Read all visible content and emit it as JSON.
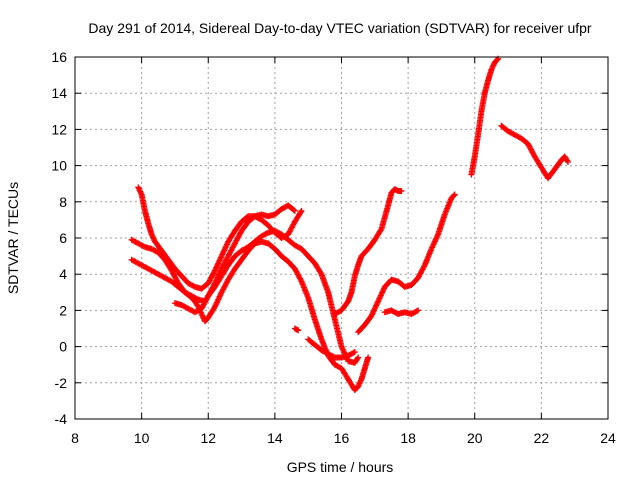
{
  "chart_data": {
    "type": "scatter",
    "title": "Day 291 of 2014, Sidereal Day-to-day VTEC variation (SDTVAR) for receiver ufpr",
    "xlabel": "GPS time / hours",
    "ylabel": "SDTVAR / TECUs",
    "xlim": [
      8,
      24
    ],
    "ylim": [
      -4,
      16
    ],
    "xticks": [
      8,
      10,
      12,
      14,
      16,
      18,
      20,
      22,
      24
    ],
    "yticks": [
      -4,
      -2,
      0,
      2,
      4,
      6,
      8,
      10,
      12,
      14,
      16
    ],
    "grid": true,
    "marker": "+",
    "color": "#ff0000",
    "series": [
      {
        "x": [
          9.7,
          9.9,
          10.1,
          10.3,
          10.5,
          10.7,
          10.9,
          11.1,
          11.3,
          11.5,
          11.7,
          11.9,
          12.0,
          12.2,
          12.4,
          12.6,
          12.8,
          13.0,
          13.2,
          13.4,
          13.6,
          13.8,
          14.0,
          14.2,
          14.4,
          14.6,
          14.8,
          15.0,
          15.2,
          15.4,
          15.6,
          15.8,
          16.0,
          16.2,
          16.4,
          16.5
        ],
        "y": [
          5.9,
          5.7,
          5.5,
          5.4,
          5.2,
          4.8,
          4.2,
          3.5,
          3.0,
          2.8,
          2.6,
          2.5,
          2.8,
          3.3,
          3.9,
          4.5,
          5.0,
          5.3,
          5.5,
          5.8,
          6.1,
          6.3,
          6.4,
          6.2,
          5.9,
          5.6,
          5.4,
          5.0,
          4.6,
          4.0,
          3.0,
          1.5,
          0.0,
          -0.8,
          -0.9,
          -0.6
        ]
      },
      {
        "x": [
          9.7,
          9.9,
          10.1,
          10.3,
          10.5,
          10.7,
          10.9,
          11.1,
          11.3,
          11.5,
          11.6,
          11.7,
          11.8,
          11.9,
          12.0,
          12.2,
          12.4,
          12.6,
          12.8,
          13.0,
          13.2,
          13.4,
          13.6,
          13.8,
          14.0,
          14.2,
          14.4,
          14.6,
          14.8,
          15.0,
          15.2,
          15.4,
          15.6,
          15.8,
          16.0,
          16.2,
          16.4,
          16.5,
          16.6,
          16.7,
          16.8
        ],
        "y": [
          4.8,
          4.6,
          4.4,
          4.2,
          4.0,
          3.8,
          3.6,
          3.3,
          3.0,
          2.7,
          2.5,
          2.2,
          1.8,
          1.4,
          1.6,
          2.2,
          3.0,
          3.7,
          4.3,
          4.8,
          5.3,
          5.7,
          5.8,
          5.7,
          5.4,
          5.0,
          4.7,
          4.3,
          3.6,
          2.7,
          1.5,
          0.4,
          -0.5,
          -1.0,
          -1.2,
          -1.8,
          -2.4,
          -2.2,
          -1.8,
          -1.2,
          -0.6
        ]
      },
      {
        "x": [
          9.9,
          10.0,
          10.1,
          10.2,
          10.3,
          10.4,
          10.6,
          10.8,
          11.0,
          11.2,
          11.4,
          11.6,
          11.8,
          12.0,
          12.2,
          12.4,
          12.6,
          12.8,
          13.0,
          13.2,
          13.4,
          13.6,
          13.8,
          14.0,
          14.2,
          14.4,
          14.6,
          14.8
        ],
        "y": [
          8.8,
          8.4,
          7.5,
          6.8,
          6.2,
          5.8,
          5.3,
          4.8,
          4.3,
          3.9,
          3.5,
          3.3,
          3.2,
          3.5,
          4.2,
          5.0,
          5.8,
          6.4,
          6.9,
          7.2,
          7.2,
          7.0,
          6.7,
          6.3,
          6.0,
          6.2,
          6.9,
          7.5
        ]
      },
      {
        "x": [
          11.0,
          11.2,
          11.4,
          11.6,
          11.8,
          12.0,
          12.2,
          12.4,
          12.6,
          12.8,
          13.0,
          13.2,
          13.4,
          13.6,
          13.8,
          14.0,
          14.2,
          14.4,
          14.6
        ],
        "y": [
          2.4,
          2.3,
          2.1,
          1.9,
          2.1,
          2.8,
          3.5,
          4.3,
          5.0,
          5.7,
          6.4,
          6.9,
          7.2,
          7.3,
          7.2,
          7.3,
          7.6,
          7.8,
          7.5
        ]
      },
      {
        "x": [
          14.6,
          14.7
        ],
        "y": [
          1.0,
          0.9
        ]
      },
      {
        "x": [
          15.0,
          15.2,
          15.4,
          15.6,
          15.8,
          16.0,
          16.2,
          16.4
        ],
        "y": [
          0.4,
          0.1,
          -0.2,
          -0.4,
          -0.6,
          -0.6,
          -0.5,
          -0.3
        ]
      },
      {
        "x": [
          15.8,
          16.0,
          16.2,
          16.3,
          16.4,
          16.5,
          16.6,
          16.8,
          17.0,
          17.2,
          17.4,
          17.5,
          17.6,
          17.7,
          17.8
        ],
        "y": [
          1.8,
          2.0,
          2.5,
          3.0,
          3.9,
          4.5,
          5.0,
          5.4,
          5.9,
          6.5,
          7.8,
          8.5,
          8.7,
          8.6,
          8.6
        ]
      },
      {
        "x": [
          16.5,
          16.7,
          16.9,
          17.1,
          17.3,
          17.5,
          17.7,
          17.9,
          18.1,
          18.3,
          18.5,
          18.7,
          18.9,
          19.1,
          19.3,
          19.4
        ],
        "y": [
          0.8,
          1.2,
          1.7,
          2.5,
          3.3,
          3.7,
          3.6,
          3.3,
          3.4,
          3.8,
          4.5,
          5.4,
          6.2,
          7.3,
          8.2,
          8.4
        ]
      },
      {
        "x": [
          17.3,
          17.5,
          17.7,
          17.9,
          18.1,
          18.3
        ],
        "y": [
          1.9,
          2.0,
          1.8,
          1.9,
          1.8,
          2.0
        ]
      },
      {
        "x": [
          19.9,
          20.0,
          20.1,
          20.2,
          20.3,
          20.4,
          20.5,
          20.6,
          20.7
        ],
        "y": [
          9.5,
          10.5,
          11.7,
          13.0,
          14.0,
          14.7,
          15.3,
          15.7,
          15.9
        ]
      },
      {
        "x": [
          20.8,
          21.0,
          21.2,
          21.4,
          21.6,
          21.8,
          22.0,
          22.2,
          22.4,
          22.6,
          22.7,
          22.8
        ],
        "y": [
          12.2,
          11.9,
          11.7,
          11.5,
          11.2,
          10.5,
          9.9,
          9.3,
          9.8,
          10.3,
          10.5,
          10.2
        ]
      }
    ]
  }
}
